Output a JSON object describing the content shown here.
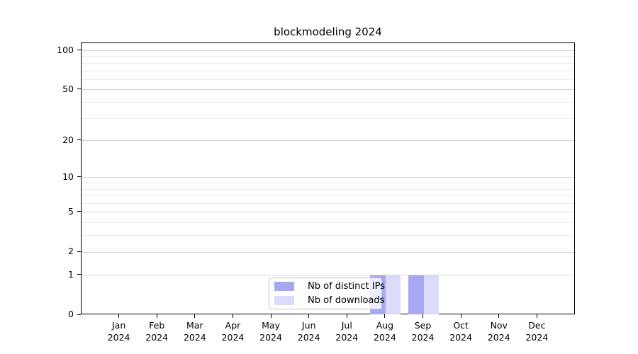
{
  "chart_data": {
    "type": "bar",
    "title": "blockmodeling 2024",
    "categories": [
      "Jan",
      "Feb",
      "Mar",
      "Apr",
      "May",
      "Jun",
      "Jul",
      "Aug",
      "Sep",
      "Oct",
      "Nov",
      "Dec"
    ],
    "year_label": "2024",
    "series": [
      {
        "name": "Nb of distinct IPs",
        "color": "#a7a7f2",
        "values": [
          0,
          0,
          0,
          0,
          0,
          0,
          0,
          1,
          1,
          0,
          0,
          0
        ]
      },
      {
        "name": "Nb of downloads",
        "color": "#dbdbf9",
        "values": [
          0,
          0,
          0,
          0,
          0,
          0,
          0,
          1,
          1,
          0,
          0,
          0
        ]
      }
    ],
    "y_axis": {
      "scale": "log1p",
      "major_ticks": [
        0,
        1,
        2,
        5,
        10,
        20,
        50,
        100
      ],
      "minor_gridlines": [
        3,
        4,
        6,
        7,
        8,
        9,
        30,
        40,
        60,
        70,
        80,
        90
      ],
      "min": 0,
      "max": 114
    },
    "x_axis": {
      "range": [
        -1,
        12
      ]
    },
    "bar_width_units": 0.4,
    "grid": "horizontal",
    "legend_position": "lower center"
  },
  "colors": {
    "background": "#ffffff",
    "axis": "#000000",
    "major_grid": "#d4d4d4",
    "minor_grid": "#ebebeb",
    "legend_border": "#c6c6c6"
  }
}
